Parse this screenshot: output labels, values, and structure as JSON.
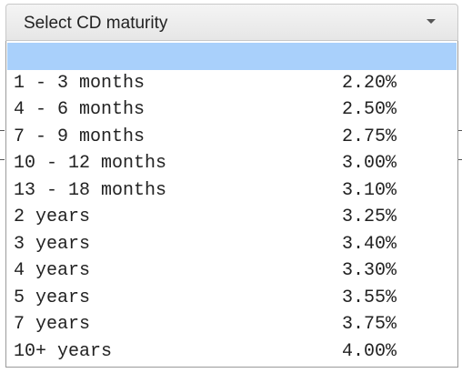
{
  "select": {
    "placeholder": "Select CD maturity",
    "options": [
      {
        "label": "1 - 3 months",
        "rate": "2.20%"
      },
      {
        "label": "4 - 6 months",
        "rate": "2.50%"
      },
      {
        "label": "7 - 9 months",
        "rate": "2.75%"
      },
      {
        "label": "10 - 12 months",
        "rate": "3.00%"
      },
      {
        "label": "13 - 18 months",
        "rate": "3.10%"
      },
      {
        "label": "2 years",
        "rate": "3.25%"
      },
      {
        "label": "3 years",
        "rate": "3.40%"
      },
      {
        "label": "4 years",
        "rate": "3.30%"
      },
      {
        "label": "5 years",
        "rate": "3.55%"
      },
      {
        "label": "7 years",
        "rate": "3.75%"
      },
      {
        "label": "10+ years",
        "rate": "4.00%"
      }
    ]
  }
}
